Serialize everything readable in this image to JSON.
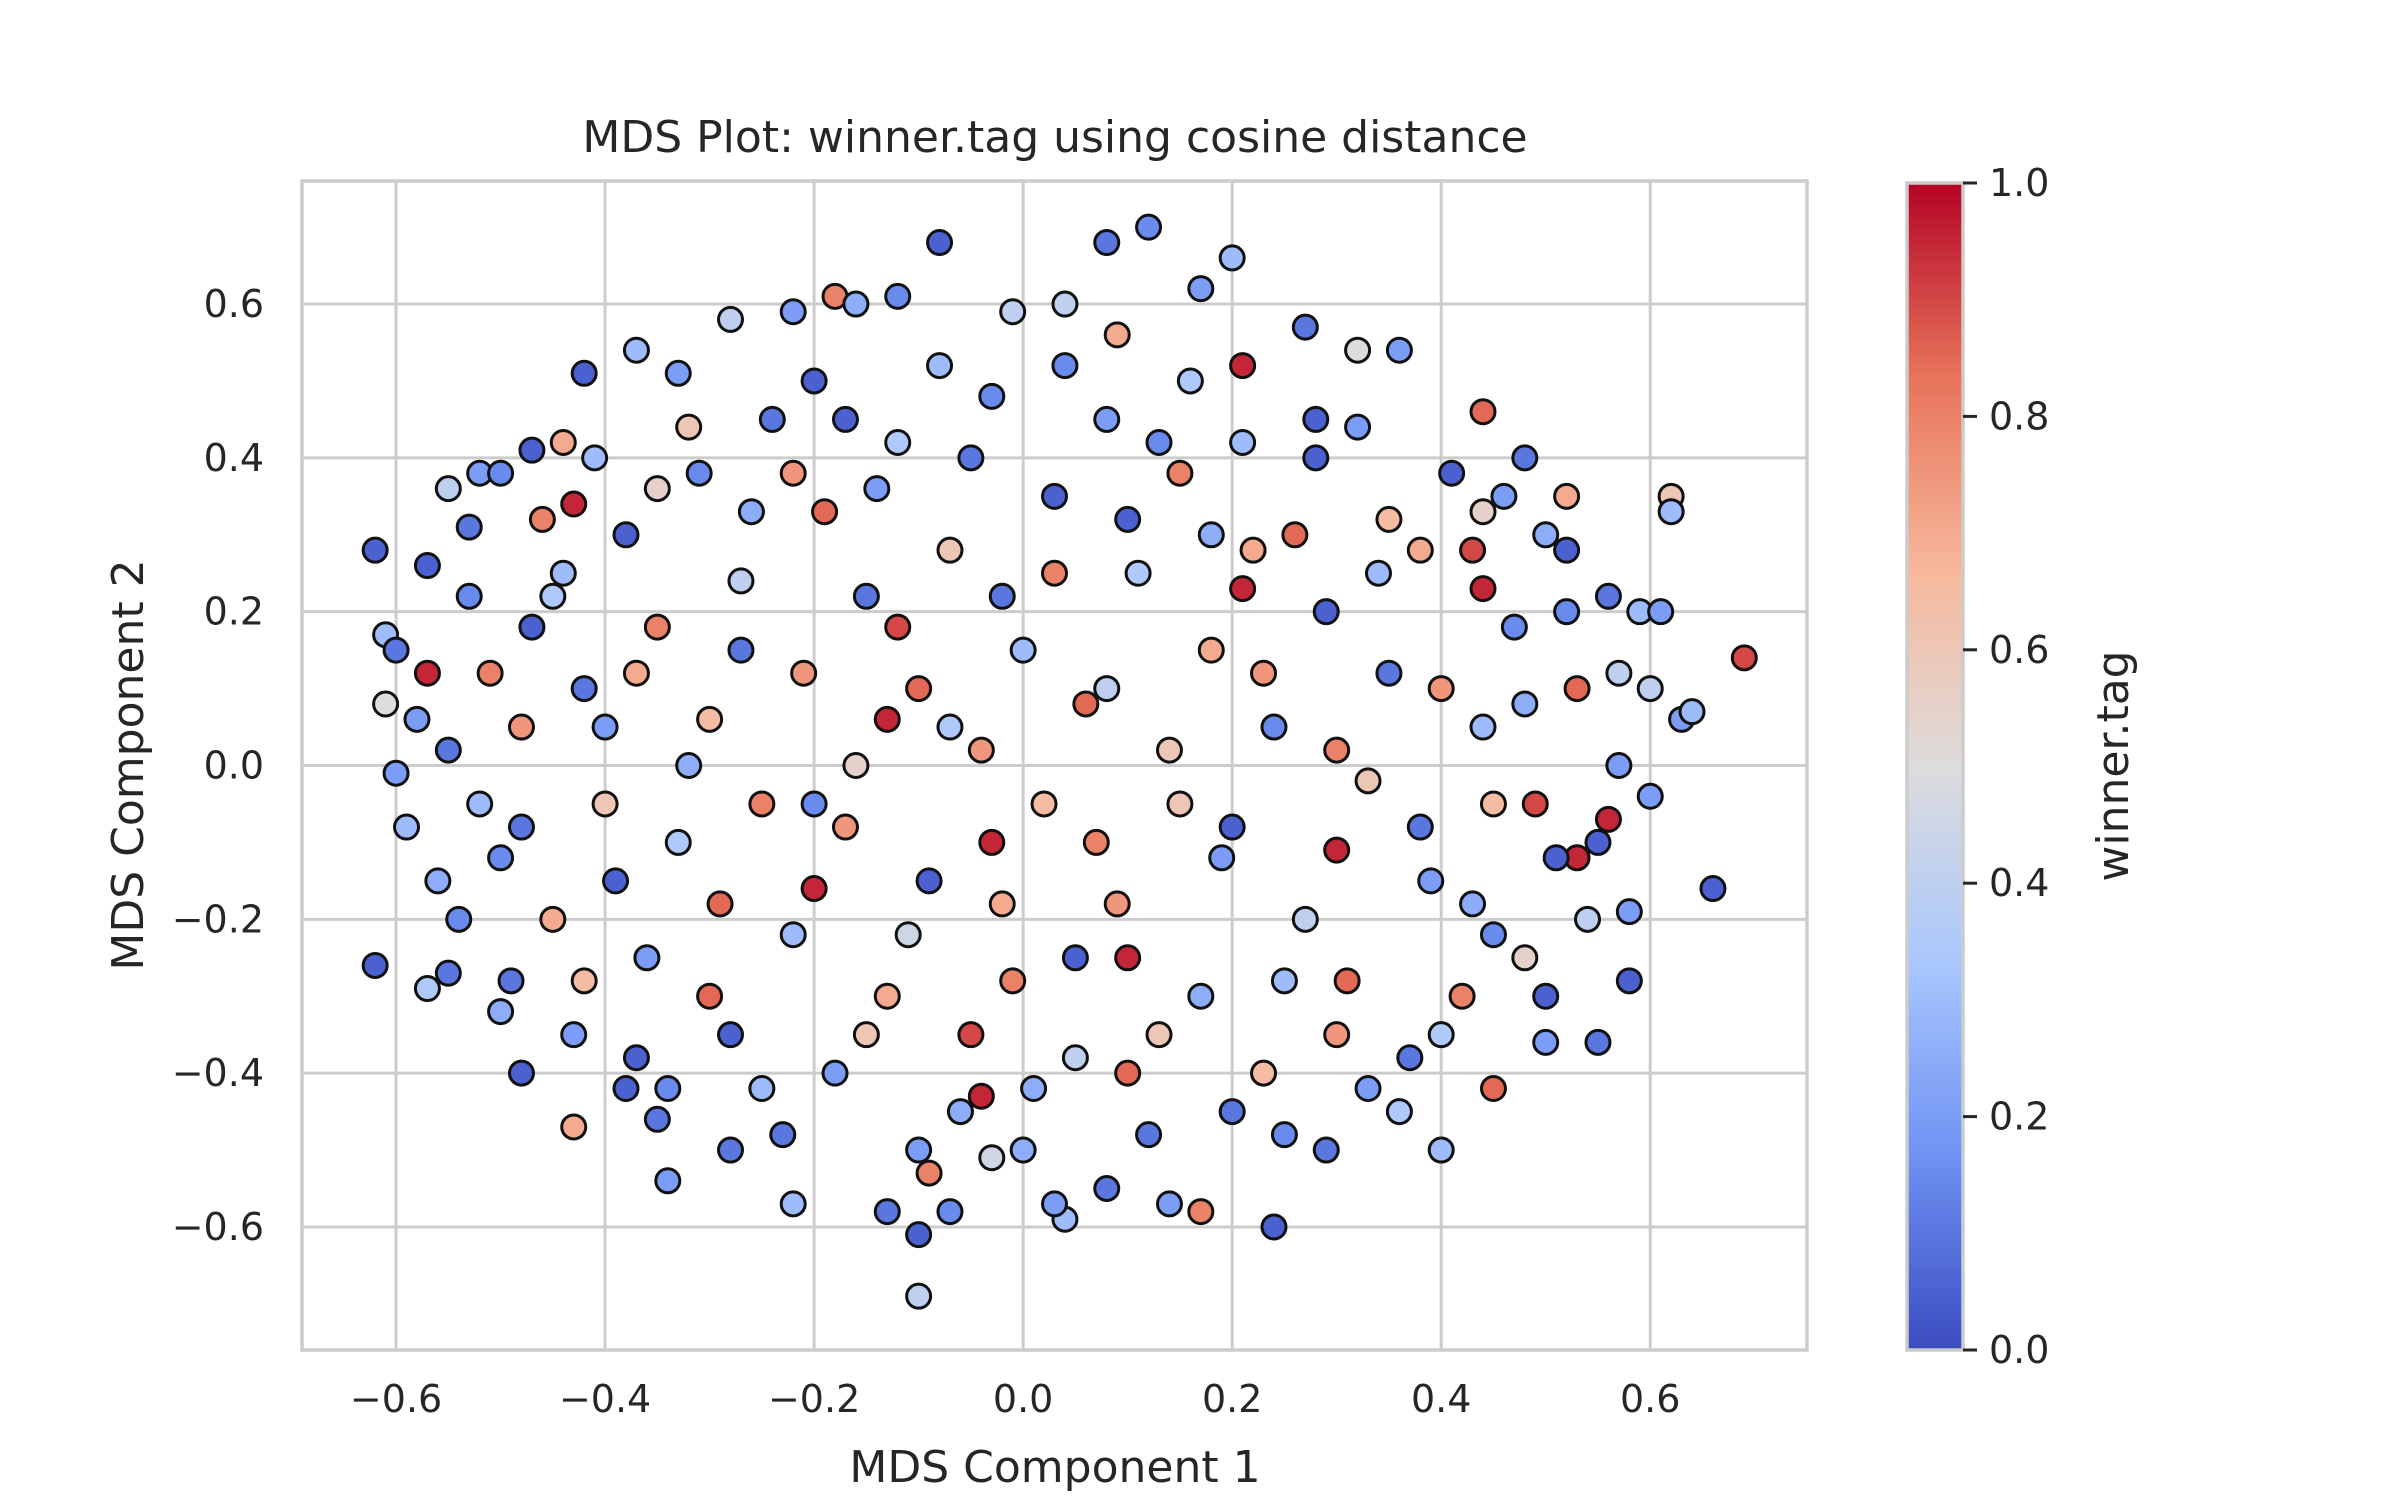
{
  "chart_data": {
    "type": "scatter",
    "title": "MDS Plot: winner.tag using cosine distance",
    "xlabel": "MDS Component 1",
    "ylabel": "MDS Component 2",
    "xlim": [
      -0.69,
      0.75
    ],
    "ylim": [
      -0.76,
      0.76
    ],
    "grid": true,
    "x_ticks": [
      -0.6,
      -0.4,
      -0.2,
      0.0,
      0.2,
      0.4,
      0.6
    ],
    "y_ticks": [
      -0.6,
      -0.4,
      -0.2,
      0.0,
      0.2,
      0.4,
      0.6
    ],
    "x_tick_labels": [
      "−0.6",
      "−0.4",
      "−0.2",
      "0.0",
      "0.2",
      "0.4",
      "0.6"
    ],
    "y_tick_labels": [
      "−0.6",
      "−0.4",
      "−0.2",
      "0.0",
      "0.2",
      "0.4",
      "0.6"
    ],
    "colorbar": {
      "label": "winner.tag",
      "colormap": "coolwarm",
      "range": [
        0.0,
        1.0
      ],
      "ticks": [
        0.0,
        0.2,
        0.4,
        0.6,
        0.8,
        1.0
      ],
      "tick_labels": [
        "0.0",
        "0.2",
        "0.4",
        "0.6",
        "0.8",
        "1.0"
      ],
      "colors": [
        "#3b4cc0",
        "#6f92f3",
        "#aac7fd",
        "#dddcdc",
        "#f7b89c",
        "#e7745b",
        "#b40426"
      ]
    },
    "marker_edge_color": "#111111",
    "points": [
      {
        "x": -0.62,
        "y": 0.28,
        "c": 0.05
      },
      {
        "x": -0.61,
        "y": 0.17,
        "c": 0.3
      },
      {
        "x": -0.62,
        "y": -0.26,
        "c": 0.05
      },
      {
        "x": -0.6,
        "y": 0.15,
        "c": 0.1
      },
      {
        "x": -0.61,
        "y": 0.08,
        "c": 0.5
      },
      {
        "x": -0.6,
        "y": -0.01,
        "c": 0.2
      },
      {
        "x": -0.57,
        "y": 0.12,
        "c": 0.95
      },
      {
        "x": -0.57,
        "y": -0.29,
        "c": 0.35
      },
      {
        "x": -0.55,
        "y": -0.27,
        "c": 0.1
      },
      {
        "x": -0.55,
        "y": 0.36,
        "c": 0.4
      },
      {
        "x": -0.52,
        "y": 0.38,
        "c": 0.2
      },
      {
        "x": -0.5,
        "y": 0.38,
        "c": 0.15
      },
      {
        "x": -0.53,
        "y": 0.31,
        "c": 0.1
      },
      {
        "x": -0.5,
        "y": -0.32,
        "c": 0.25
      },
      {
        "x": -0.48,
        "y": -0.4,
        "c": 0.05
      },
      {
        "x": -0.47,
        "y": 0.41,
        "c": 0.05
      },
      {
        "x": -0.44,
        "y": 0.42,
        "c": 0.7
      },
      {
        "x": -0.43,
        "y": 0.34,
        "c": 0.95
      },
      {
        "x": -0.42,
        "y": 0.51,
        "c": 0.05
      },
      {
        "x": -0.37,
        "y": 0.54,
        "c": 0.3
      },
      {
        "x": -0.33,
        "y": 0.51,
        "c": 0.2
      },
      {
        "x": -0.43,
        "y": -0.47,
        "c": 0.7
      },
      {
        "x": -0.38,
        "y": -0.42,
        "c": 0.05
      },
      {
        "x": -0.35,
        "y": -0.46,
        "c": 0.1
      },
      {
        "x": -0.34,
        "y": -0.54,
        "c": 0.2
      },
      {
        "x": -0.28,
        "y": -0.5,
        "c": 0.1
      },
      {
        "x": -0.22,
        "y": -0.57,
        "c": 0.3
      },
      {
        "x": -0.28,
        "y": 0.58,
        "c": 0.4
      },
      {
        "x": -0.22,
        "y": 0.59,
        "c": 0.2
      },
      {
        "x": -0.18,
        "y": 0.61,
        "c": 0.8
      },
      {
        "x": -0.16,
        "y": 0.6,
        "c": 0.25
      },
      {
        "x": -0.12,
        "y": 0.61,
        "c": 0.15
      },
      {
        "x": -0.08,
        "y": 0.68,
        "c": 0.05
      },
      {
        "x": -0.01,
        "y": 0.59,
        "c": 0.4
      },
      {
        "x": 0.04,
        "y": 0.6,
        "c": 0.4
      },
      {
        "x": 0.08,
        "y": 0.68,
        "c": 0.1
      },
      {
        "x": 0.12,
        "y": 0.7,
        "c": 0.15
      },
      {
        "x": 0.17,
        "y": 0.62,
        "c": 0.2
      },
      {
        "x": 0.2,
        "y": 0.66,
        "c": 0.3
      },
      {
        "x": 0.09,
        "y": 0.56,
        "c": 0.7
      },
      {
        "x": 0.21,
        "y": 0.52,
        "c": 0.95
      },
      {
        "x": 0.27,
        "y": 0.57,
        "c": 0.1
      },
      {
        "x": 0.32,
        "y": 0.54,
        "c": 0.5
      },
      {
        "x": 0.36,
        "y": 0.54,
        "c": 0.2
      },
      {
        "x": 0.44,
        "y": 0.46,
        "c": 0.85
      },
      {
        "x": 0.48,
        "y": 0.4,
        "c": 0.1
      },
      {
        "x": 0.44,
        "y": 0.33,
        "c": 0.55
      },
      {
        "x": 0.52,
        "y": 0.28,
        "c": 0.05
      },
      {
        "x": 0.62,
        "y": 0.35,
        "c": 0.6
      },
      {
        "x": 0.62,
        "y": 0.33,
        "c": 0.3
      },
      {
        "x": 0.59,
        "y": 0.2,
        "c": 0.3
      },
      {
        "x": 0.61,
        "y": 0.2,
        "c": 0.2
      },
      {
        "x": 0.69,
        "y": 0.14,
        "c": 0.9
      },
      {
        "x": 0.6,
        "y": 0.1,
        "c": 0.4
      },
      {
        "x": 0.63,
        "y": 0.06,
        "c": 0.2
      },
      {
        "x": 0.64,
        "y": 0.07,
        "c": 0.3
      },
      {
        "x": 0.6,
        "y": -0.04,
        "c": 0.2
      },
      {
        "x": 0.66,
        "y": -0.16,
        "c": 0.05
      },
      {
        "x": 0.58,
        "y": -0.19,
        "c": 0.2
      },
      {
        "x": 0.58,
        "y": -0.28,
        "c": 0.05
      },
      {
        "x": 0.55,
        "y": -0.36,
        "c": 0.1
      },
      {
        "x": 0.53,
        "y": -0.12,
        "c": 0.95
      },
      {
        "x": 0.56,
        "y": -0.07,
        "c": 0.95
      },
      {
        "x": 0.5,
        "y": -0.36,
        "c": 0.2
      },
      {
        "x": 0.45,
        "y": -0.42,
        "c": 0.85
      },
      {
        "x": 0.4,
        "y": -0.5,
        "c": 0.3
      },
      {
        "x": 0.29,
        "y": -0.5,
        "c": 0.1
      },
      {
        "x": 0.24,
        "y": -0.6,
        "c": 0.05
      },
      {
        "x": 0.17,
        "y": -0.58,
        "c": 0.8
      },
      {
        "x": 0.14,
        "y": -0.57,
        "c": 0.2
      },
      {
        "x": 0.08,
        "y": -0.55,
        "c": 0.1
      },
      {
        "x": 0.04,
        "y": -0.59,
        "c": 0.3
      },
      {
        "x": 0.03,
        "y": -0.57,
        "c": 0.2
      },
      {
        "x": -0.03,
        "y": -0.51,
        "c": 0.45
      },
      {
        "x": -0.1,
        "y": -0.69,
        "c": 0.4
      },
      {
        "x": -0.1,
        "y": -0.61,
        "c": 0.05
      },
      {
        "x": -0.13,
        "y": -0.58,
        "c": 0.1
      },
      {
        "x": -0.07,
        "y": -0.58,
        "c": 0.15
      },
      {
        "x": -0.09,
        "y": -0.53,
        "c": 0.8
      },
      {
        "x": -0.04,
        "y": -0.43,
        "c": 0.95
      },
      {
        "x": 0.1,
        "y": -0.25,
        "c": 0.95
      },
      {
        "x": -0.03,
        "y": -0.1,
        "c": 0.95
      },
      {
        "x": -0.2,
        "y": -0.16,
        "c": 0.95
      },
      {
        "x": -0.13,
        "y": 0.06,
        "c": 0.95
      },
      {
        "x": 0.21,
        "y": 0.23,
        "c": 0.95
      },
      {
        "x": 0.3,
        "y": -0.11,
        "c": 0.95
      },
      {
        "x": 0.44,
        "y": 0.23,
        "c": 0.95
      },
      {
        "x": -0.58,
        "y": 0.06,
        "c": 0.2
      },
      {
        "x": -0.55,
        "y": 0.02,
        "c": 0.1
      },
      {
        "x": -0.52,
        "y": -0.05,
        "c": 0.3
      },
      {
        "x": -0.5,
        "y": -0.12,
        "c": 0.15
      },
      {
        "x": -0.48,
        "y": 0.05,
        "c": 0.75
      },
      {
        "x": -0.47,
        "y": 0.18,
        "c": 0.05
      },
      {
        "x": -0.45,
        "y": -0.2,
        "c": 0.7
      },
      {
        "x": -0.44,
        "y": 0.25,
        "c": 0.3
      },
      {
        "x": -0.42,
        "y": 0.1,
        "c": 0.1
      },
      {
        "x": -0.4,
        "y": -0.05,
        "c": 0.6
      },
      {
        "x": -0.38,
        "y": 0.3,
        "c": 0.05
      },
      {
        "x": -0.36,
        "y": -0.25,
        "c": 0.2
      },
      {
        "x": -0.35,
        "y": 0.18,
        "c": 0.8
      },
      {
        "x": -0.33,
        "y": -0.1,
        "c": 0.35
      },
      {
        "x": -0.31,
        "y": 0.38,
        "c": 0.15
      },
      {
        "x": -0.3,
        "y": 0.06,
        "c": 0.65
      },
      {
        "x": -0.28,
        "y": -0.35,
        "c": 0.05
      },
      {
        "x": -0.27,
        "y": 0.24,
        "c": 0.4
      },
      {
        "x": -0.25,
        "y": -0.05,
        "c": 0.8
      },
      {
        "x": -0.24,
        "y": 0.45,
        "c": 0.1
      },
      {
        "x": -0.22,
        "y": -0.22,
        "c": 0.3
      },
      {
        "x": -0.21,
        "y": 0.12,
        "c": 0.75
      },
      {
        "x": -0.19,
        "y": 0.33,
        "c": 0.85
      },
      {
        "x": -0.18,
        "y": -0.4,
        "c": 0.2
      },
      {
        "x": -0.16,
        "y": 0.0,
        "c": 0.55
      },
      {
        "x": -0.15,
        "y": 0.22,
        "c": 0.1
      },
      {
        "x": -0.13,
        "y": -0.3,
        "c": 0.7
      },
      {
        "x": -0.12,
        "y": 0.42,
        "c": 0.35
      },
      {
        "x": -0.1,
        "y": 0.1,
        "c": 0.85
      },
      {
        "x": -0.09,
        "y": -0.15,
        "c": 0.05
      },
      {
        "x": -0.07,
        "y": 0.28,
        "c": 0.6
      },
      {
        "x": -0.06,
        "y": -0.45,
        "c": 0.25
      },
      {
        "x": -0.04,
        "y": 0.02,
        "c": 0.75
      },
      {
        "x": -0.03,
        "y": 0.48,
        "c": 0.15
      },
      {
        "x": -0.01,
        "y": -0.28,
        "c": 0.8
      },
      {
        "x": 0.0,
        "y": 0.15,
        "c": 0.3
      },
      {
        "x": 0.02,
        "y": -0.05,
        "c": 0.65
      },
      {
        "x": 0.03,
        "y": 0.35,
        "c": 0.05
      },
      {
        "x": 0.05,
        "y": -0.38,
        "c": 0.4
      },
      {
        "x": 0.06,
        "y": 0.08,
        "c": 0.85
      },
      {
        "x": 0.08,
        "y": 0.45,
        "c": 0.2
      },
      {
        "x": 0.09,
        "y": -0.18,
        "c": 0.75
      },
      {
        "x": 0.11,
        "y": 0.25,
        "c": 0.35
      },
      {
        "x": 0.12,
        "y": -0.48,
        "c": 0.1
      },
      {
        "x": 0.14,
        "y": 0.02,
        "c": 0.6
      },
      {
        "x": 0.15,
        "y": 0.38,
        "c": 0.8
      },
      {
        "x": 0.17,
        "y": -0.3,
        "c": 0.25
      },
      {
        "x": 0.18,
        "y": 0.15,
        "c": 0.7
      },
      {
        "x": 0.2,
        "y": -0.08,
        "c": 0.05
      },
      {
        "x": 0.21,
        "y": 0.42,
        "c": 0.3
      },
      {
        "x": 0.23,
        "y": -0.4,
        "c": 0.65
      },
      {
        "x": 0.24,
        "y": 0.05,
        "c": 0.15
      },
      {
        "x": 0.26,
        "y": 0.3,
        "c": 0.85
      },
      {
        "x": 0.27,
        "y": -0.2,
        "c": 0.4
      },
      {
        "x": 0.29,
        "y": 0.2,
        "c": 0.05
      },
      {
        "x": 0.3,
        "y": -0.35,
        "c": 0.75
      },
      {
        "x": 0.32,
        "y": 0.44,
        "c": 0.2
      },
      {
        "x": 0.33,
        "y": -0.02,
        "c": 0.6
      },
      {
        "x": 0.35,
        "y": 0.12,
        "c": 0.1
      },
      {
        "x": 0.36,
        "y": -0.45,
        "c": 0.35
      },
      {
        "x": 0.38,
        "y": 0.28,
        "c": 0.7
      },
      {
        "x": 0.39,
        "y": -0.15,
        "c": 0.2
      },
      {
        "x": 0.41,
        "y": 0.38,
        "c": 0.05
      },
      {
        "x": 0.42,
        "y": -0.3,
        "c": 0.8
      },
      {
        "x": 0.44,
        "y": 0.05,
        "c": 0.3
      },
      {
        "x": 0.45,
        "y": -0.05,
        "c": 0.65
      },
      {
        "x": 0.47,
        "y": 0.18,
        "c": 0.15
      },
      {
        "x": 0.48,
        "y": -0.25,
        "c": 0.55
      },
      {
        "x": 0.5,
        "y": 0.3,
        "c": 0.25
      },
      {
        "x": 0.51,
        "y": -0.12,
        "c": 0.05
      },
      {
        "x": 0.53,
        "y": 0.1,
        "c": 0.85
      },
      {
        "x": 0.54,
        "y": -0.2,
        "c": 0.4
      },
      {
        "x": 0.56,
        "y": 0.22,
        "c": 0.1
      },
      {
        "x": 0.57,
        "y": 0.0,
        "c": 0.2
      },
      {
        "x": -0.56,
        "y": -0.15,
        "c": 0.25
      },
      {
        "x": -0.53,
        "y": 0.22,
        "c": 0.15
      },
      {
        "x": -0.49,
        "y": -0.28,
        "c": 0.1
      },
      {
        "x": -0.46,
        "y": 0.32,
        "c": 0.8
      },
      {
        "x": -0.43,
        "y": -0.35,
        "c": 0.2
      },
      {
        "x": -0.41,
        "y": 0.4,
        "c": 0.3
      },
      {
        "x": -0.39,
        "y": -0.15,
        "c": 0.05
      },
      {
        "x": -0.37,
        "y": 0.12,
        "c": 0.7
      },
      {
        "x": -0.34,
        "y": -0.42,
        "c": 0.15
      },
      {
        "x": -0.32,
        "y": 0.44,
        "c": 0.6
      },
      {
        "x": -0.29,
        "y": -0.18,
        "c": 0.85
      },
      {
        "x": -0.26,
        "y": 0.33,
        "c": 0.25
      },
      {
        "x": -0.23,
        "y": -0.48,
        "c": 0.1
      },
      {
        "x": -0.2,
        "y": 0.5,
        "c": 0.05
      },
      {
        "x": -0.17,
        "y": -0.08,
        "c": 0.75
      },
      {
        "x": -0.14,
        "y": 0.36,
        "c": 0.2
      },
      {
        "x": -0.11,
        "y": -0.22,
        "c": 0.45
      },
      {
        "x": -0.08,
        "y": 0.52,
        "c": 0.3
      },
      {
        "x": -0.05,
        "y": -0.35,
        "c": 0.9
      },
      {
        "x": -0.02,
        "y": 0.22,
        "c": 0.1
      },
      {
        "x": 0.01,
        "y": -0.42,
        "c": 0.25
      },
      {
        "x": 0.04,
        "y": 0.52,
        "c": 0.15
      },
      {
        "x": 0.07,
        "y": -0.1,
        "c": 0.8
      },
      {
        "x": 0.1,
        "y": 0.32,
        "c": 0.05
      },
      {
        "x": 0.13,
        "y": -0.35,
        "c": 0.6
      },
      {
        "x": 0.16,
        "y": 0.5,
        "c": 0.35
      },
      {
        "x": 0.19,
        "y": -0.12,
        "c": 0.2
      },
      {
        "x": 0.22,
        "y": 0.28,
        "c": 0.7
      },
      {
        "x": 0.25,
        "y": -0.48,
        "c": 0.15
      },
      {
        "x": 0.28,
        "y": 0.4,
        "c": 0.05
      },
      {
        "x": 0.31,
        "y": -0.28,
        "c": 0.85
      },
      {
        "x": 0.34,
        "y": 0.25,
        "c": 0.3
      },
      {
        "x": 0.37,
        "y": -0.38,
        "c": 0.1
      },
      {
        "x": 0.4,
        "y": 0.1,
        "c": 0.75
      },
      {
        "x": 0.43,
        "y": -0.18,
        "c": 0.25
      },
      {
        "x": 0.46,
        "y": 0.35,
        "c": 0.2
      },
      {
        "x": 0.49,
        "y": -0.05,
        "c": 0.9
      },
      {
        "x": 0.52,
        "y": 0.2,
        "c": 0.15
      },
      {
        "x": 0.55,
        "y": -0.1,
        "c": 0.05
      },
      {
        "x": 0.57,
        "y": 0.12,
        "c": 0.4
      },
      {
        "x": -0.59,
        "y": -0.08,
        "c": 0.3
      },
      {
        "x": -0.57,
        "y": 0.26,
        "c": 0.05
      },
      {
        "x": -0.54,
        "y": -0.2,
        "c": 0.15
      },
      {
        "x": -0.51,
        "y": 0.12,
        "c": 0.8
      },
      {
        "x": -0.48,
        "y": -0.08,
        "c": 0.1
      },
      {
        "x": -0.45,
        "y": 0.22,
        "c": 0.35
      },
      {
        "x": -0.42,
        "y": -0.28,
        "c": 0.65
      },
      {
        "x": -0.4,
        "y": 0.05,
        "c": 0.2
      },
      {
        "x": -0.37,
        "y": -0.38,
        "c": 0.05
      },
      {
        "x": -0.35,
        "y": 0.36,
        "c": 0.55
      },
      {
        "x": -0.32,
        "y": 0.0,
        "c": 0.25
      },
      {
        "x": -0.3,
        "y": -0.3,
        "c": 0.85
      },
      {
        "x": -0.27,
        "y": 0.15,
        "c": 0.1
      },
      {
        "x": -0.25,
        "y": -0.42,
        "c": 0.3
      },
      {
        "x": -0.22,
        "y": 0.38,
        "c": 0.75
      },
      {
        "x": -0.2,
        "y": -0.05,
        "c": 0.15
      },
      {
        "x": -0.17,
        "y": 0.45,
        "c": 0.05
      },
      {
        "x": -0.15,
        "y": -0.35,
        "c": 0.6
      },
      {
        "x": -0.12,
        "y": 0.18,
        "c": 0.9
      },
      {
        "x": -0.1,
        "y": -0.5,
        "c": 0.2
      },
      {
        "x": -0.07,
        "y": 0.05,
        "c": 0.35
      },
      {
        "x": -0.05,
        "y": 0.4,
        "c": 0.1
      },
      {
        "x": -0.02,
        "y": -0.18,
        "c": 0.7
      },
      {
        "x": 0.0,
        "y": -0.5,
        "c": 0.25
      },
      {
        "x": 0.03,
        "y": 0.25,
        "c": 0.8
      },
      {
        "x": 0.05,
        "y": -0.25,
        "c": 0.05
      },
      {
        "x": 0.08,
        "y": 0.1,
        "c": 0.4
      },
      {
        "x": 0.1,
        "y": -0.4,
        "c": 0.85
      },
      {
        "x": 0.13,
        "y": 0.42,
        "c": 0.15
      },
      {
        "x": 0.15,
        "y": -0.05,
        "c": 0.6
      },
      {
        "x": 0.18,
        "y": 0.3,
        "c": 0.25
      },
      {
        "x": 0.2,
        "y": -0.45,
        "c": 0.1
      },
      {
        "x": 0.23,
        "y": 0.12,
        "c": 0.75
      },
      {
        "x": 0.25,
        "y": -0.28,
        "c": 0.3
      },
      {
        "x": 0.28,
        "y": 0.45,
        "c": 0.05
      },
      {
        "x": 0.3,
        "y": 0.02,
        "c": 0.8
      },
      {
        "x": 0.33,
        "y": -0.42,
        "c": 0.2
      },
      {
        "x": 0.35,
        "y": 0.32,
        "c": 0.65
      },
      {
        "x": 0.38,
        "y": -0.08,
        "c": 0.1
      },
      {
        "x": 0.4,
        "y": -0.35,
        "c": 0.35
      },
      {
        "x": 0.43,
        "y": 0.28,
        "c": 0.9
      },
      {
        "x": 0.45,
        "y": -0.22,
        "c": 0.15
      },
      {
        "x": 0.48,
        "y": 0.08,
        "c": 0.25
      },
      {
        "x": 0.5,
        "y": -0.3,
        "c": 0.05
      },
      {
        "x": 0.52,
        "y": 0.35,
        "c": 0.7
      }
    ]
  }
}
